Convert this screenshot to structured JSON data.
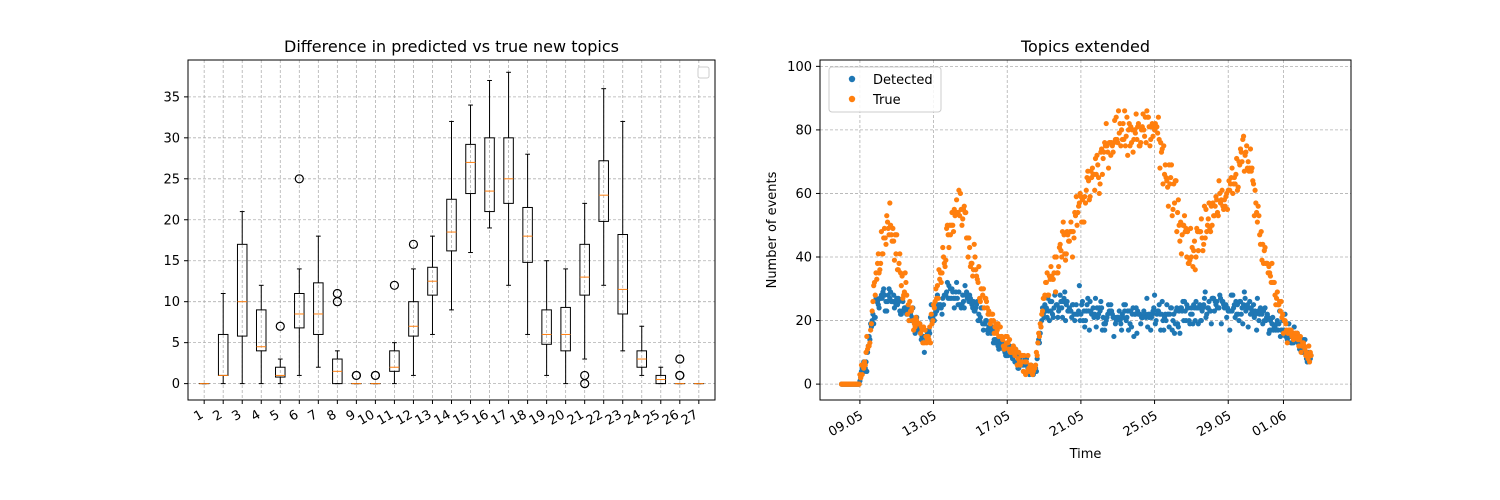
{
  "chart_data": [
    {
      "type": "box",
      "title": "Difference in predicted vs true new topics",
      "xlabel": "",
      "ylabel": "",
      "categories": [
        "1",
        "2",
        "3",
        "4",
        "5",
        "6",
        "7",
        "8",
        "9",
        "10",
        "11",
        "12",
        "13",
        "14",
        "15",
        "16",
        "17",
        "18",
        "19",
        "20",
        "21",
        "22",
        "23",
        "24",
        "25",
        "26",
        "27"
      ],
      "ylim": [
        -2,
        39.5
      ],
      "yticks": [
        0,
        5,
        10,
        15,
        20,
        25,
        30,
        35
      ],
      "grid": true,
      "legend": "top-right (empty)",
      "boxes": [
        {
          "whislo": 0,
          "q1": 0,
          "med": 0,
          "q3": 0,
          "whishi": 0,
          "fliers": []
        },
        {
          "whislo": 0,
          "q1": 1,
          "med": 1,
          "q3": 6,
          "whishi": 11,
          "fliers": []
        },
        {
          "whislo": 0,
          "q1": 5.8,
          "med": 10,
          "q3": 17,
          "whishi": 21,
          "fliers": []
        },
        {
          "whislo": 0,
          "q1": 4,
          "med": 4.5,
          "q3": 9,
          "whishi": 12,
          "fliers": []
        },
        {
          "whislo": 0,
          "q1": 0.8,
          "med": 1,
          "q3": 2,
          "whishi": 3,
          "fliers": [
            7
          ]
        },
        {
          "whislo": 1,
          "q1": 6.8,
          "med": 8.5,
          "q3": 11,
          "whishi": 14,
          "fliers": [
            25
          ]
        },
        {
          "whislo": 2,
          "q1": 6,
          "med": 8.5,
          "q3": 12.3,
          "whishi": 18,
          "fliers": []
        },
        {
          "whislo": 0,
          "q1": 0,
          "med": 1.5,
          "q3": 3,
          "whishi": 4,
          "fliers": [
            10,
            11
          ]
        },
        {
          "whislo": 0,
          "q1": 0,
          "med": 0,
          "q3": 0,
          "whishi": 0,
          "fliers": [
            1,
            1
          ]
        },
        {
          "whislo": 0,
          "q1": 0,
          "med": 0,
          "q3": 0,
          "whishi": 0,
          "fliers": [
            1,
            1
          ]
        },
        {
          "whislo": 0,
          "q1": 1.5,
          "med": 2,
          "q3": 4,
          "whishi": 5,
          "fliers": [
            12
          ]
        },
        {
          "whislo": 1,
          "q1": 5.8,
          "med": 7,
          "q3": 10,
          "whishi": 14,
          "fliers": [
            17
          ]
        },
        {
          "whislo": 6,
          "q1": 10.8,
          "med": 12.5,
          "q3": 14.2,
          "whishi": 18,
          "fliers": []
        },
        {
          "whislo": 9,
          "q1": 16.2,
          "med": 18.5,
          "q3": 22.5,
          "whishi": 32,
          "fliers": []
        },
        {
          "whislo": 16,
          "q1": 23.2,
          "med": 27,
          "q3": 29.2,
          "whishi": 34,
          "fliers": []
        },
        {
          "whislo": 19,
          "q1": 21,
          "med": 23.5,
          "q3": 30,
          "whishi": 37,
          "fliers": []
        },
        {
          "whislo": 12,
          "q1": 22,
          "med": 25,
          "q3": 30,
          "whishi": 38,
          "fliers": []
        },
        {
          "whislo": 6,
          "q1": 14.8,
          "med": 18,
          "q3": 21.5,
          "whishi": 28,
          "fliers": []
        },
        {
          "whislo": 1,
          "q1": 4.8,
          "med": 6,
          "q3": 9,
          "whishi": 15,
          "fliers": []
        },
        {
          "whislo": 0,
          "q1": 4,
          "med": 6,
          "q3": 9.3,
          "whishi": 14,
          "fliers": []
        },
        {
          "whislo": 3,
          "q1": 10.8,
          "med": 13,
          "q3": 17,
          "whishi": 22,
          "fliers": [
            0,
            1
          ]
        },
        {
          "whislo": 12,
          "q1": 19.8,
          "med": 23,
          "q3": 27.2,
          "whishi": 36,
          "fliers": []
        },
        {
          "whislo": 4,
          "q1": 8.5,
          "med": 11.5,
          "q3": 18.2,
          "whishi": 32,
          "fliers": []
        },
        {
          "whislo": 1,
          "q1": 2,
          "med": 3,
          "q3": 4,
          "whishi": 7,
          "fliers": []
        },
        {
          "whislo": 0,
          "q1": 0,
          "med": 0.5,
          "q3": 1,
          "whishi": 2,
          "fliers": []
        },
        {
          "whislo": 0,
          "q1": 0,
          "med": 0,
          "q3": 0,
          "whishi": 0,
          "fliers": [
            1,
            1,
            3
          ]
        },
        {
          "whislo": 0,
          "q1": 0,
          "med": 0,
          "q3": 0,
          "whishi": 0,
          "fliers": []
        }
      ]
    },
    {
      "type": "scatter",
      "title": "Topics extended",
      "xlabel": "Time",
      "ylabel": "Number of events",
      "xlim": [
        "2018-05-06T20:00",
        "2018-06-04T16:00"
      ],
      "ylim": [
        -5,
        102
      ],
      "yticks": [
        0,
        20,
        40,
        60,
        80,
        100
      ],
      "xticks": [
        "09.05",
        "13.05",
        "17.05",
        "21.05",
        "25.05",
        "29.05",
        "01.06"
      ],
      "grid": true,
      "legend": "top-left",
      "series": [
        {
          "name": "Detected",
          "color": "#1f77b4",
          "profile": {
            "days": [
              "2018-05-08T00:00",
              "2018-05-08T23:00",
              "2018-05-09T00:00",
              "2018-05-09T09:00",
              "2018-05-09T14:00",
              "2018-05-10T00:00",
              "2018-05-11T00:00",
              "2018-05-12T00:00",
              "2018-05-12T12:00",
              "2018-05-13T00:00",
              "2018-05-14T00:00",
              "2018-05-15T00:00",
              "2018-05-16T00:00",
              "2018-05-17T00:00",
              "2018-05-18T00:00",
              "2018-05-18T12:00",
              "2018-05-19T00:00",
              "2018-05-20T00:00",
              "2018-05-22T00:00",
              "2018-05-24T00:00",
              "2018-05-26T00:00",
              "2018-05-28T00:00",
              "2018-05-30T00:00",
              "2018-06-01T00:00",
              "2018-06-02T00:00",
              "2018-06-02T12:00"
            ],
            "values": [
              0,
              0,
              2,
              8,
              17,
              26,
              26,
              20,
              14,
              22,
              29,
              26,
              17,
              10,
              6,
              4,
              24,
              25,
              22,
              22,
              22,
              24,
              24,
              18,
              12,
              8
            ],
            "spread": [
              0.5,
              0.5,
              1.5,
              3,
              4,
              4,
              3,
              3,
              3,
              4,
              4,
              4,
              3,
              3,
              3,
              3,
              5,
              5,
              5,
              5,
              5,
              5,
              5,
              4,
              3,
              3
            ]
          }
        },
        {
          "name": "True",
          "color": "#ff7f0e",
          "profile": {
            "days": [
              "2018-05-08T00:00",
              "2018-05-08T23:00",
              "2018-05-09T00:00",
              "2018-05-09T09:00",
              "2018-05-09T14:00",
              "2018-05-10T00:00",
              "2018-05-10T15:00",
              "2018-05-11T00:00",
              "2018-05-11T12:00",
              "2018-05-12T00:00",
              "2018-05-12T18:00",
              "2018-05-13T00:00",
              "2018-05-13T12:00",
              "2018-05-14T00:00",
              "2018-05-14T12:00",
              "2018-05-15T00:00",
              "2018-05-16T00:00",
              "2018-05-17T00:00",
              "2018-05-18T00:00",
              "2018-05-18T12:00",
              "2018-05-19T00:00",
              "2018-05-20T00:00",
              "2018-05-21T00:00",
              "2018-05-22T00:00",
              "2018-05-23T00:00",
              "2018-05-24T00:00",
              "2018-05-25T00:00",
              "2018-05-26T00:00",
              "2018-05-27T00:00",
              "2018-05-28T00:00",
              "2018-05-29T00:00",
              "2018-05-30T00:00",
              "2018-05-31T00:00",
              "2018-06-01T00:00",
              "2018-06-02T00:00",
              "2018-06-02T12:00"
            ],
            "values": [
              0,
              0,
              2,
              9,
              20,
              40,
              55,
              42,
              28,
              20,
              14,
              22,
              40,
              52,
              58,
              42,
              22,
              12,
              6,
              3,
              28,
              42,
              55,
              68,
              80,
              78,
              82,
              60,
              40,
              52,
              62,
              75,
              40,
              20,
              12,
              8
            ],
            "spread": [
              0.5,
              0.5,
              2,
              4,
              6,
              8,
              8,
              8,
              6,
              4,
              4,
              5,
              6,
              7,
              6,
              6,
              4,
              3,
              3,
              2,
              5,
              6,
              8,
              8,
              8,
              7,
              8,
              8,
              6,
              7,
              7,
              8,
              6,
              4,
              3,
              3
            ]
          }
        }
      ]
    }
  ]
}
